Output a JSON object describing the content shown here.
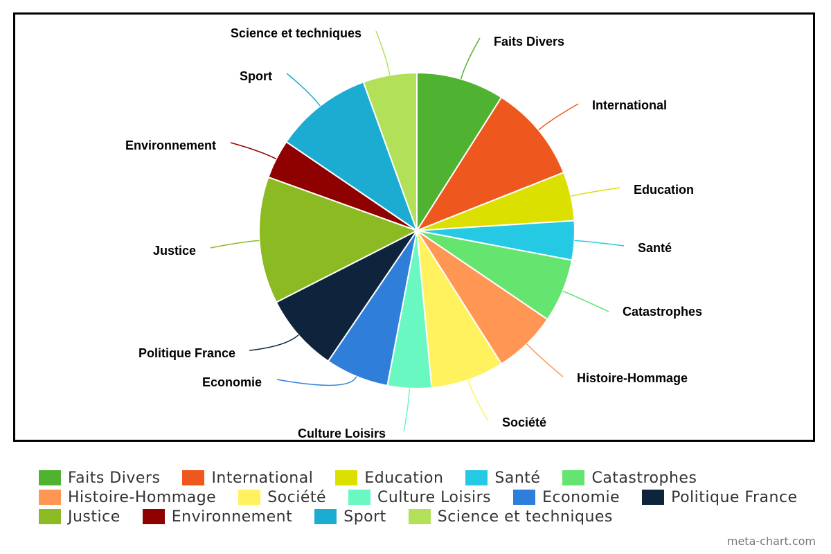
{
  "chart_data": {
    "type": "pie",
    "title": "",
    "categories": [
      "Faits Divers",
      "International",
      "Education",
      "Santé",
      "Catastrophes",
      "Histoire-Hommage",
      "Société",
      "Culture Loisirs",
      "Economie",
      "Politique France",
      "Justice",
      "Environnement",
      "Sport",
      "Science et techniques"
    ],
    "values": [
      9,
      10,
      5,
      4,
      6.5,
      6.5,
      7.5,
      4.5,
      6.5,
      8,
      13,
      4,
      10,
      5.5
    ],
    "colors": [
      "#4fb331",
      "#ee571d",
      "#dce000",
      "#25c9e3",
      "#65e46f",
      "#ff9654",
      "#fff25e",
      "#6af8c2",
      "#2f7fda",
      "#0e243c",
      "#8bba22",
      "#8f0000",
      "#1dacd1",
      "#b2e058"
    ],
    "legend_position": "bottom",
    "start_angle_deg": 0,
    "direction": "clockwise"
  },
  "watermark": "meta-chart.com"
}
